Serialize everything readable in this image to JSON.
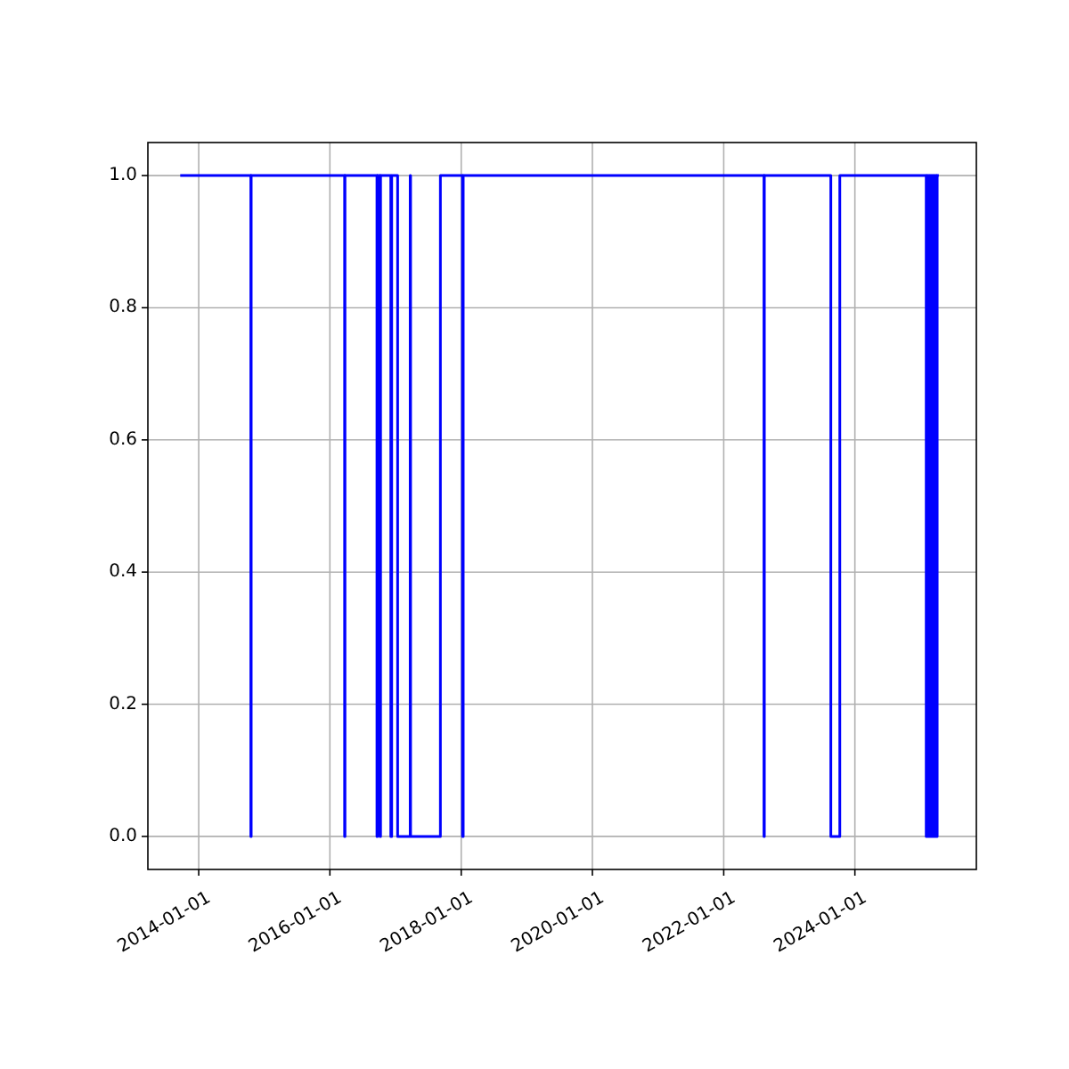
{
  "chart_data": {
    "type": "step",
    "x": [
      "2013-09-20",
      "2014-10-18",
      "2014-10-20",
      "2016-03-23",
      "2016-03-25",
      "2016-09-19",
      "2016-09-22",
      "2016-10-06",
      "2016-10-09",
      "2016-12-05",
      "2016-12-10",
      "2017-01-12",
      "2017-03-23",
      "2017-03-25",
      "2017-09-07",
      "2018-01-08",
      "2018-01-12",
      "2022-08-13",
      "2022-08-15",
      "2023-08-20",
      "2023-10-09",
      "2025-02-01",
      "2025-02-05",
      "2025-02-09",
      "2025-02-14",
      "2025-02-19",
      "2025-02-24",
      "2025-03-01",
      "2025-03-06",
      "2025-03-11",
      "2025-03-16",
      "2025-03-21",
      "2025-03-26",
      "2025-03-30",
      "2025-04-03",
      "2025-04-12"
    ],
    "series": [
      {
        "color": "#0000ff",
        "values": [
          1,
          0,
          1,
          0,
          1,
          0,
          1,
          0,
          1,
          0,
          1,
          0,
          1,
          0,
          1,
          0,
          1,
          0,
          1,
          0,
          1,
          0,
          1,
          0,
          1,
          0,
          1,
          0,
          1,
          0,
          1,
          0,
          1,
          0,
          1,
          1
        ]
      }
    ],
    "xlim": [
      "2013-03-24",
      "2025-11-07"
    ],
    "xticks": [
      "2014-01-01",
      "2016-01-01",
      "2018-01-01",
      "2020-01-01",
      "2022-01-01",
      "2024-01-01"
    ],
    "ylim": [
      -0.05,
      1.05
    ],
    "yticks": [
      {
        "value": 0,
        "label": "0.0"
      },
      {
        "value": 0.2,
        "label": "0.2"
      },
      {
        "value": 0.4,
        "label": "0.4"
      },
      {
        "value": 0.6,
        "label": "0.6"
      },
      {
        "value": 0.8,
        "label": "0.8"
      },
      {
        "value": 1,
        "label": "1.0"
      }
    ],
    "grid": true,
    "line_style": "solid"
  }
}
